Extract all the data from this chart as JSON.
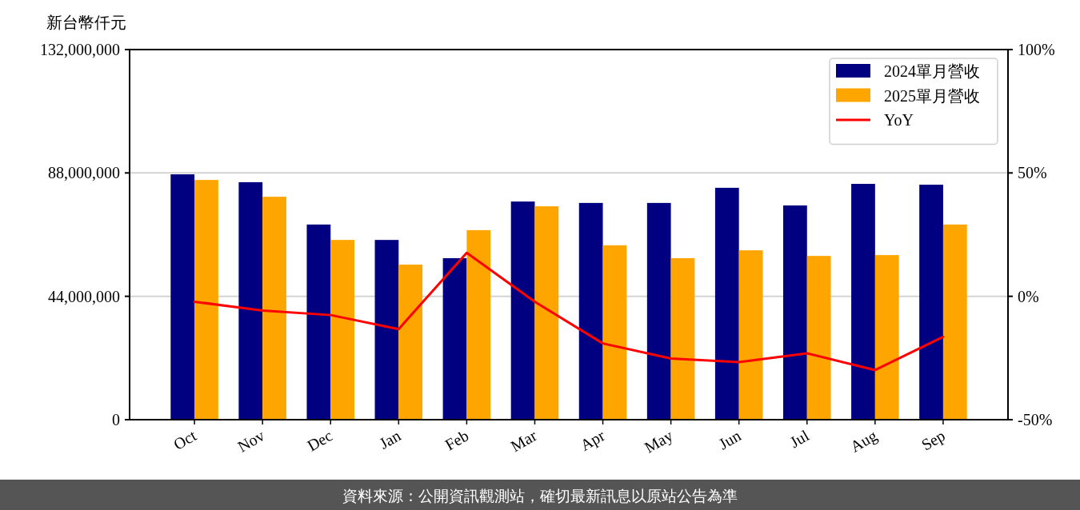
{
  "chart_data": {
    "type": "bar",
    "ylabel": "新台幣仟元",
    "categories": [
      "Oct",
      "Nov",
      "Dec",
      "Jan",
      "Feb",
      "Mar",
      "Apr",
      "May",
      "Jun",
      "Jul",
      "Aug",
      "Sep"
    ],
    "series": [
      {
        "name": "2024單月營收",
        "color": "#000080",
        "values": [
          87500000,
          84700000,
          69600000,
          64100000,
          57600000,
          77800000,
          77300000,
          77300000,
          82700000,
          76400000,
          84100000,
          83800000
        ]
      },
      {
        "name": "2025單月營收",
        "color": "#ffa500",
        "values": [
          85500000,
          79500000,
          64100000,
          55300000,
          67600000,
          76100000,
          62200000,
          57600000,
          60400000,
          58400000,
          58700000,
          69600000
        ]
      },
      {
        "name": "YoY",
        "type": "line",
        "axis": "y2",
        "color": "#ff0000",
        "values": [
          -2.2,
          -5.8,
          -7.6,
          -13.3,
          17.6,
          -2.2,
          -19.1,
          -25.2,
          -26.7,
          -23.1,
          -29.9,
          -16.4
        ]
      }
    ],
    "ylim": [
      0,
      132000000
    ],
    "yticks": [
      0,
      {
        "value": 44000000,
        "label": "44,000,000"
      },
      {
        "value": 88000000,
        "label": "88,000,000"
      },
      {
        "value": 132000000,
        "label": "132,000,000"
      }
    ],
    "y2lim": [
      -50,
      100
    ],
    "y2ticks": [
      {
        "value": -50,
        "label": "-50%"
      },
      {
        "value": 0,
        "label": "0%"
      },
      {
        "value": 50,
        "label": "50%"
      },
      {
        "value": 100,
        "label": "100%"
      }
    ],
    "grid": "y",
    "legend": "top right",
    "annotations": [
      "資料來源：公開資訊觀測站，確切最新訊息以原站公告為準"
    ]
  }
}
